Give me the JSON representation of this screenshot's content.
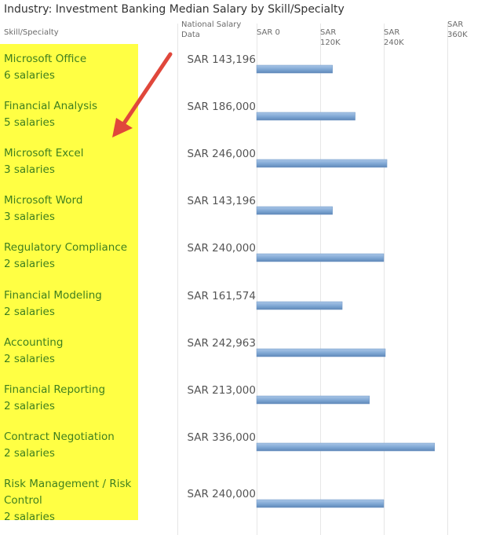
{
  "chart_data": {
    "type": "bar",
    "orientation": "horizontal",
    "title": "Industry: Investment Banking Median Salary by Skill/Specialty",
    "category_header": "Skill/Specialty",
    "value_header": "National Salary Data",
    "categories": [
      "Microsoft Office",
      "Financial Analysis",
      "Microsoft Excel",
      "Microsoft Word",
      "Regulatory Compliance",
      "Financial Modeling",
      "Accounting",
      "Financial Reporting",
      "Contract Negotiation",
      "Risk Management / Risk Control"
    ],
    "counts": [
      "6 salaries",
      "5 salaries",
      "3 salaries",
      "3 salaries",
      "2 salaries",
      "2 salaries",
      "2 salaries",
      "2 salaries",
      "2 salaries",
      "2 salaries"
    ],
    "values": [
      143196,
      186000,
      246000,
      143196,
      240000,
      161574,
      242963,
      213000,
      336000,
      240000
    ],
    "value_labels": [
      "SAR 143,196",
      "SAR 186,000",
      "SAR 246,000",
      "SAR 143,196",
      "SAR 240,000",
      "SAR 161,574",
      "SAR 242,963",
      "SAR 213,000",
      "SAR 336,000",
      "SAR 240,000"
    ],
    "xlim": [
      0,
      360000
    ],
    "x_ticks": [
      0,
      120000,
      240000,
      360000
    ],
    "x_tick_labels": [
      "SAR 0",
      "SAR 120K",
      "SAR 240K",
      "SAR 360K"
    ],
    "grid": true,
    "bar_color": "#7ea6d3",
    "label_color": "#3f7f1f",
    "highlight_color": "#ffff44",
    "annotation_color": "#e0473b"
  }
}
